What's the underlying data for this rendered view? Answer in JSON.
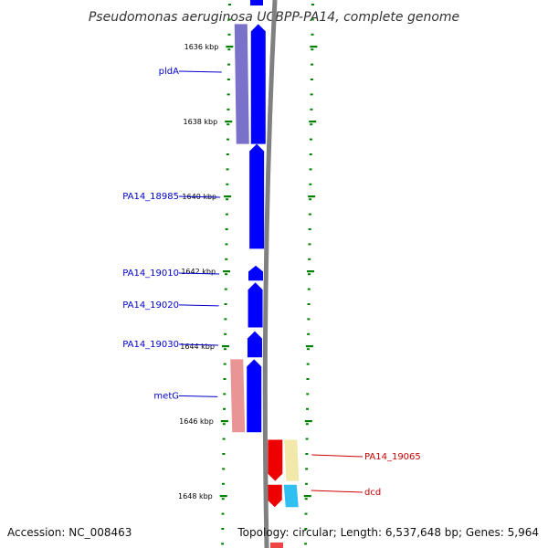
{
  "title": "Pseudomonas aeruginosa UCBPP-PA14, complete genome",
  "footer": {
    "accession": "Accession: NC_008463",
    "summary": "Topology: circular; Length: 6,537,648 bp; Genes: 5,964"
  },
  "ruler": {
    "unit": "kbp",
    "ticks": [
      {
        "label": "1636 kbp",
        "kbp": 1636
      },
      {
        "label": "1638 kbp",
        "kbp": 1638
      },
      {
        "label": "1640 kbp",
        "kbp": 1640
      },
      {
        "label": "1642 kbp",
        "kbp": 1642
      },
      {
        "label": "1644 kbp",
        "kbp": 1644
      },
      {
        "label": "1646 kbp",
        "kbp": 1646
      },
      {
        "label": "1648 kbp",
        "kbp": 1648
      }
    ]
  },
  "genes": [
    {
      "name": "pldA",
      "strand": "forward",
      "start_kbp": 1635.4,
      "end_kbp": 1638.6,
      "color": "#0000ff",
      "cog_color": "#6b63c4"
    },
    {
      "name": "PA14_18985",
      "strand": "forward",
      "start_kbp": 1638.6,
      "end_kbp": 1641.4,
      "color": "#0000ff"
    },
    {
      "name": "PA14_19010",
      "strand": "forward",
      "start_kbp": 1641.85,
      "end_kbp": 1642.25,
      "color": "#0000ff"
    },
    {
      "name": "PA14_19020",
      "strand": "forward",
      "start_kbp": 1642.3,
      "end_kbp": 1643.5,
      "color": "#0000ff"
    },
    {
      "name": "PA14_19030",
      "strand": "forward",
      "start_kbp": 1643.6,
      "end_kbp": 1644.3,
      "color": "#0000ff"
    },
    {
      "name": "metG",
      "strand": "forward",
      "start_kbp": 1644.35,
      "end_kbp": 1646.3,
      "color": "#0000ff",
      "cog_color": "#e88a8a"
    },
    {
      "name": "PA14_19065",
      "strand": "reverse",
      "start_kbp": 1646.5,
      "end_kbp": 1647.6,
      "color": "#ee0000",
      "cog_color": "#f0e6a0"
    },
    {
      "name": "dcd",
      "strand": "reverse",
      "start_kbp": 1647.7,
      "end_kbp": 1648.3,
      "color": "#ee0000",
      "cog_color": "#1ab8f0"
    }
  ],
  "colors": {
    "backbone": "#808080",
    "tick": "#008000",
    "forward_gene": "#0000ff",
    "reverse_gene": "#ee0000"
  }
}
